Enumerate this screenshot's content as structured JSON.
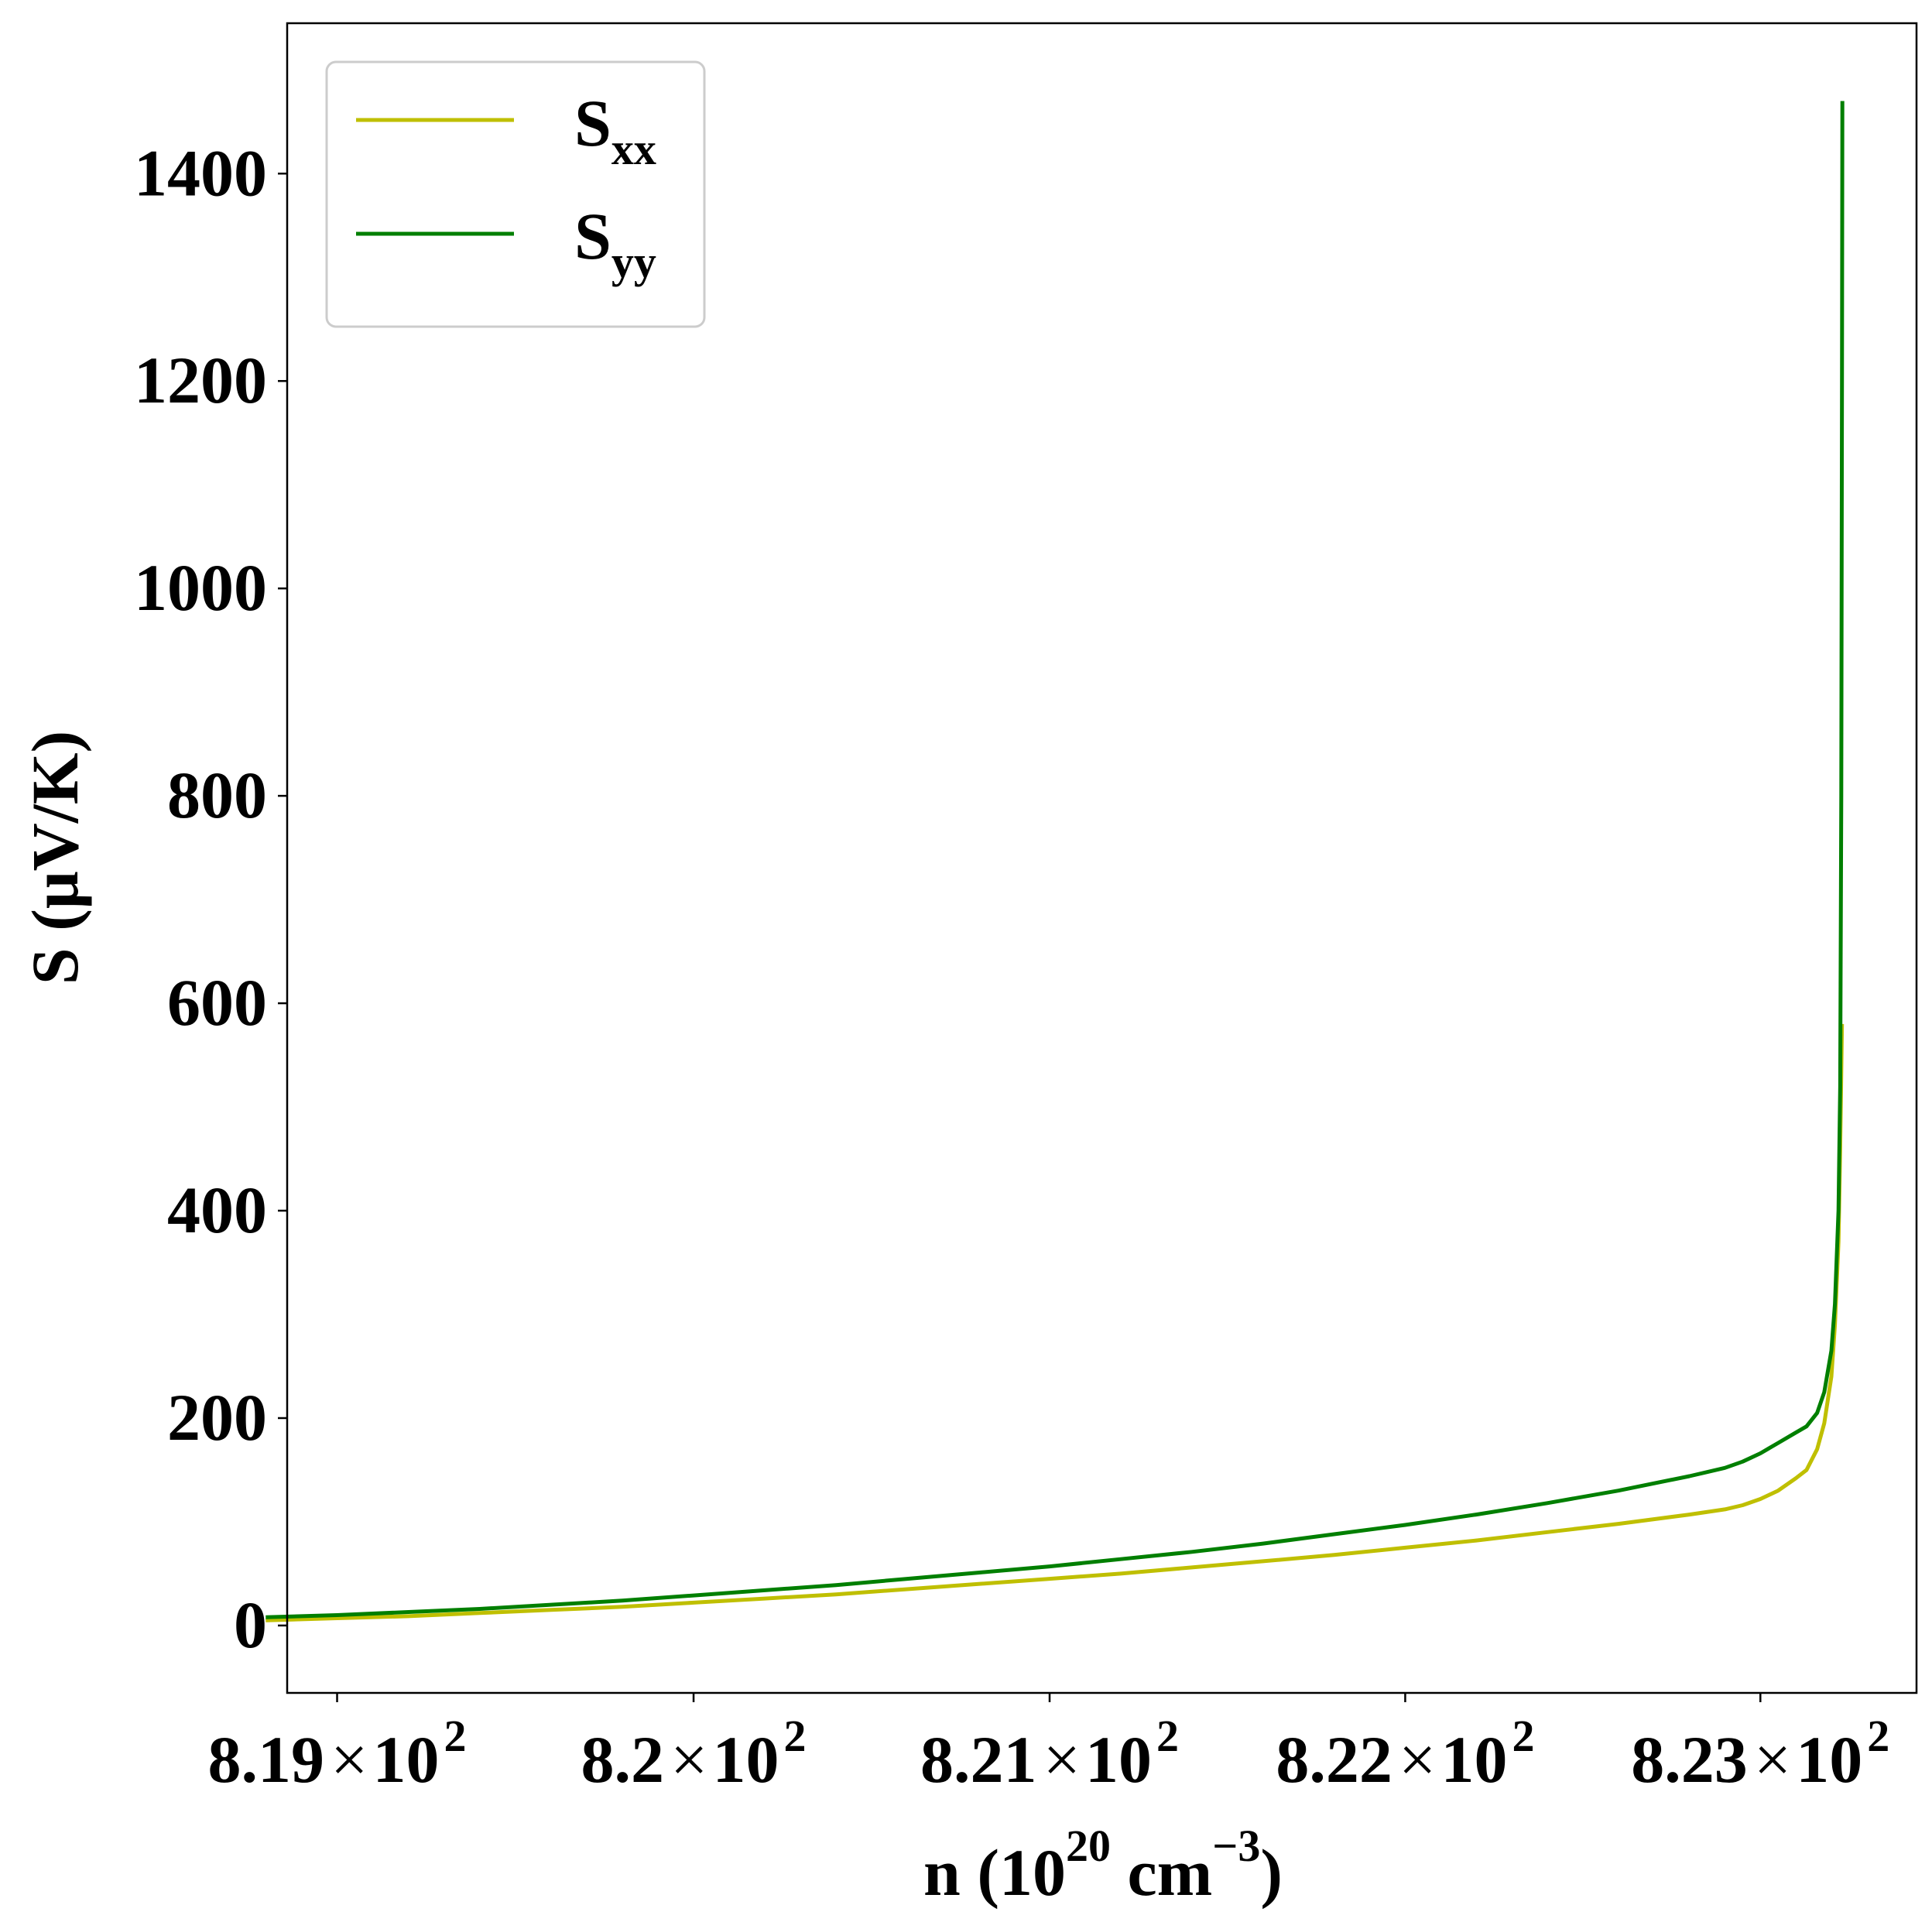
{
  "chart_data": {
    "type": "line",
    "title": "",
    "xlabel": {
      "prefix": "n (10",
      "sup1": "20",
      "middle": " cm",
      "sup2": "−3",
      "suffix": ")"
    },
    "ylabel": "S (μV/K)",
    "xlim": [
      818.86,
      823.44
    ],
    "ylim": [
      -65,
      1545
    ],
    "x_scale": "log",
    "xticks": [
      {
        "value": 819,
        "mantissa": "8.19"
      },
      {
        "value": 820,
        "mantissa": "8.2"
      },
      {
        "value": 821,
        "mantissa": "8.21"
      },
      {
        "value": 822,
        "mantissa": "8.22"
      },
      {
        "value": 823,
        "mantissa": "8.23"
      }
    ],
    "xtick_base": "10",
    "xtick_exponent": "2",
    "xtick_times": "×",
    "yticks": [
      {
        "value": 0,
        "label": "0"
      },
      {
        "value": 200,
        "label": "200"
      },
      {
        "value": 400,
        "label": "400"
      },
      {
        "value": 600,
        "label": "600"
      },
      {
        "value": 800,
        "label": "800"
      },
      {
        "value": 1000,
        "label": "1000"
      },
      {
        "value": 1200,
        "label": "1200"
      },
      {
        "value": 1400,
        "label": "1400"
      }
    ],
    "grid": false,
    "legend_position": "top-left",
    "series": [
      {
        "name": "S",
        "subscript": "xx",
        "color": "#bfbf00",
        "x": [
          818.8,
          819.0,
          819.2,
          819.4,
          819.6,
          819.8,
          820.0,
          820.2,
          820.4,
          820.6,
          820.8,
          821.0,
          821.2,
          821.4,
          821.6,
          821.8,
          822.0,
          822.2,
          822.4,
          822.6,
          822.8,
          822.9,
          822.95,
          823.0,
          823.05,
          823.1,
          823.13,
          823.16,
          823.18,
          823.2,
          823.21,
          823.22,
          823.225,
          823.23
        ],
        "y": [
          5,
          7,
          9,
          12,
          15,
          18,
          22,
          26,
          30,
          35,
          40,
          45,
          50,
          56,
          62,
          68,
          75,
          82,
          90,
          98,
          107,
          112,
          116,
          122,
          130,
          142,
          150,
          170,
          195,
          240,
          290,
          370,
          460,
          580
        ]
      },
      {
        "name": "S",
        "subscript": "yy",
        "color": "#007f00",
        "x": [
          818.8,
          819.0,
          819.2,
          819.4,
          819.6,
          819.8,
          820.0,
          820.2,
          820.4,
          820.6,
          820.8,
          821.0,
          821.2,
          821.4,
          821.6,
          821.8,
          822.0,
          822.2,
          822.4,
          822.6,
          822.8,
          822.9,
          822.95,
          823.0,
          823.05,
          823.1,
          823.13,
          823.16,
          823.18,
          823.2,
          823.21,
          823.22,
          823.225,
          823.228,
          823.23,
          823.231
        ],
        "y": [
          8,
          10,
          13,
          16,
          20,
          24,
          29,
          34,
          39,
          45,
          51,
          57,
          64,
          71,
          79,
          88,
          97,
          107,
          118,
          130,
          144,
          152,
          158,
          166,
          176,
          186,
          192,
          205,
          225,
          265,
          310,
          400,
          520,
          800,
          1200,
          1470
        ]
      }
    ]
  }
}
